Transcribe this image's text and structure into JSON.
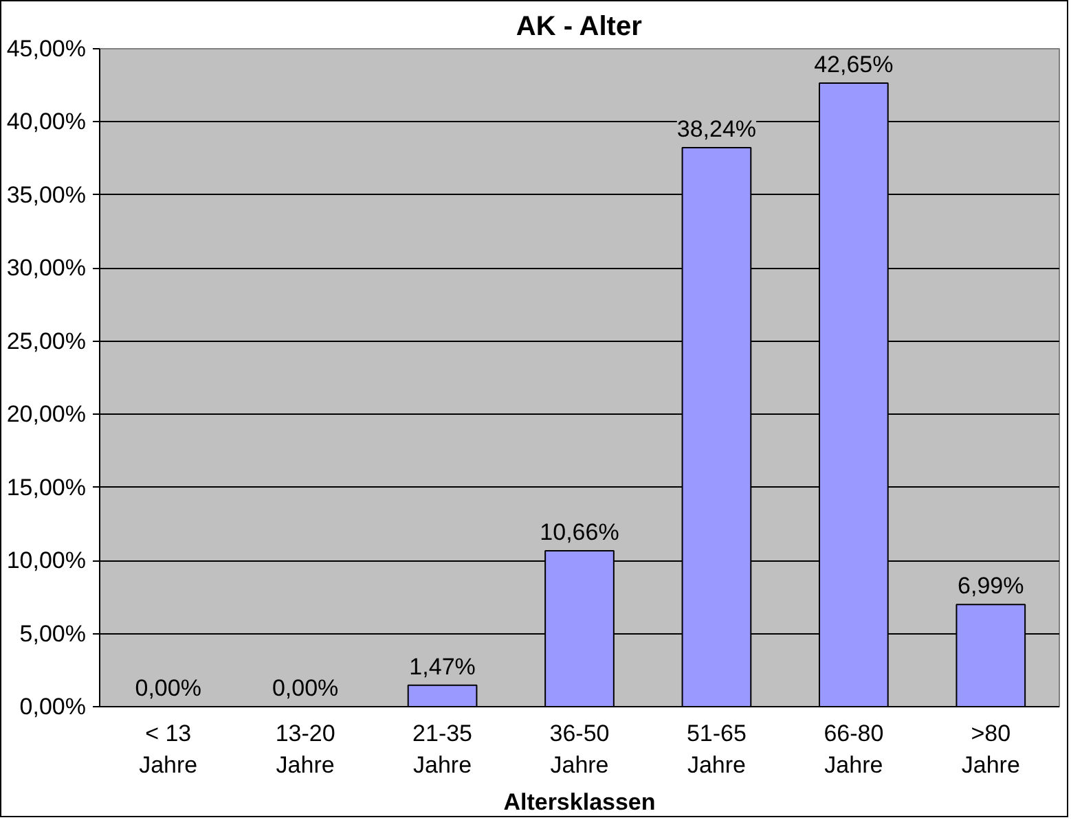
{
  "chart_data": {
    "type": "bar",
    "title": "AK - Alter",
    "xlabel": "Altersklassen",
    "categories": [
      "< 13\nJahre",
      "13-20\nJahre",
      "21-35\nJahre",
      "36-50\nJahre",
      "51-65\nJahre",
      "66-80\nJahre",
      ">80\nJahre"
    ],
    "values": [
      0,
      0,
      1.47,
      10.66,
      38.24,
      42.65,
      6.99
    ],
    "value_labels": [
      "0,00%",
      "0,00%",
      "1,47%",
      "10,66%",
      "38,24%",
      "42,65%",
      "6,99%"
    ],
    "color": "#9999ff",
    "ylim": [
      0,
      45
    ],
    "yticks": [
      {
        "value": 0,
        "label": "0,00%"
      },
      {
        "value": 5,
        "label": "5,00%"
      },
      {
        "value": 10,
        "label": "10,00%"
      },
      {
        "value": 15,
        "label": "15,00%"
      },
      {
        "value": 20,
        "label": "20,00%"
      },
      {
        "value": 25,
        "label": "25,00%"
      },
      {
        "value": 30,
        "label": "30,00%"
      },
      {
        "value": 35,
        "label": "35,00%"
      },
      {
        "value": 40,
        "label": "40,00%"
      },
      {
        "value": 45,
        "label": "45,00%"
      }
    ],
    "grid": "y"
  }
}
